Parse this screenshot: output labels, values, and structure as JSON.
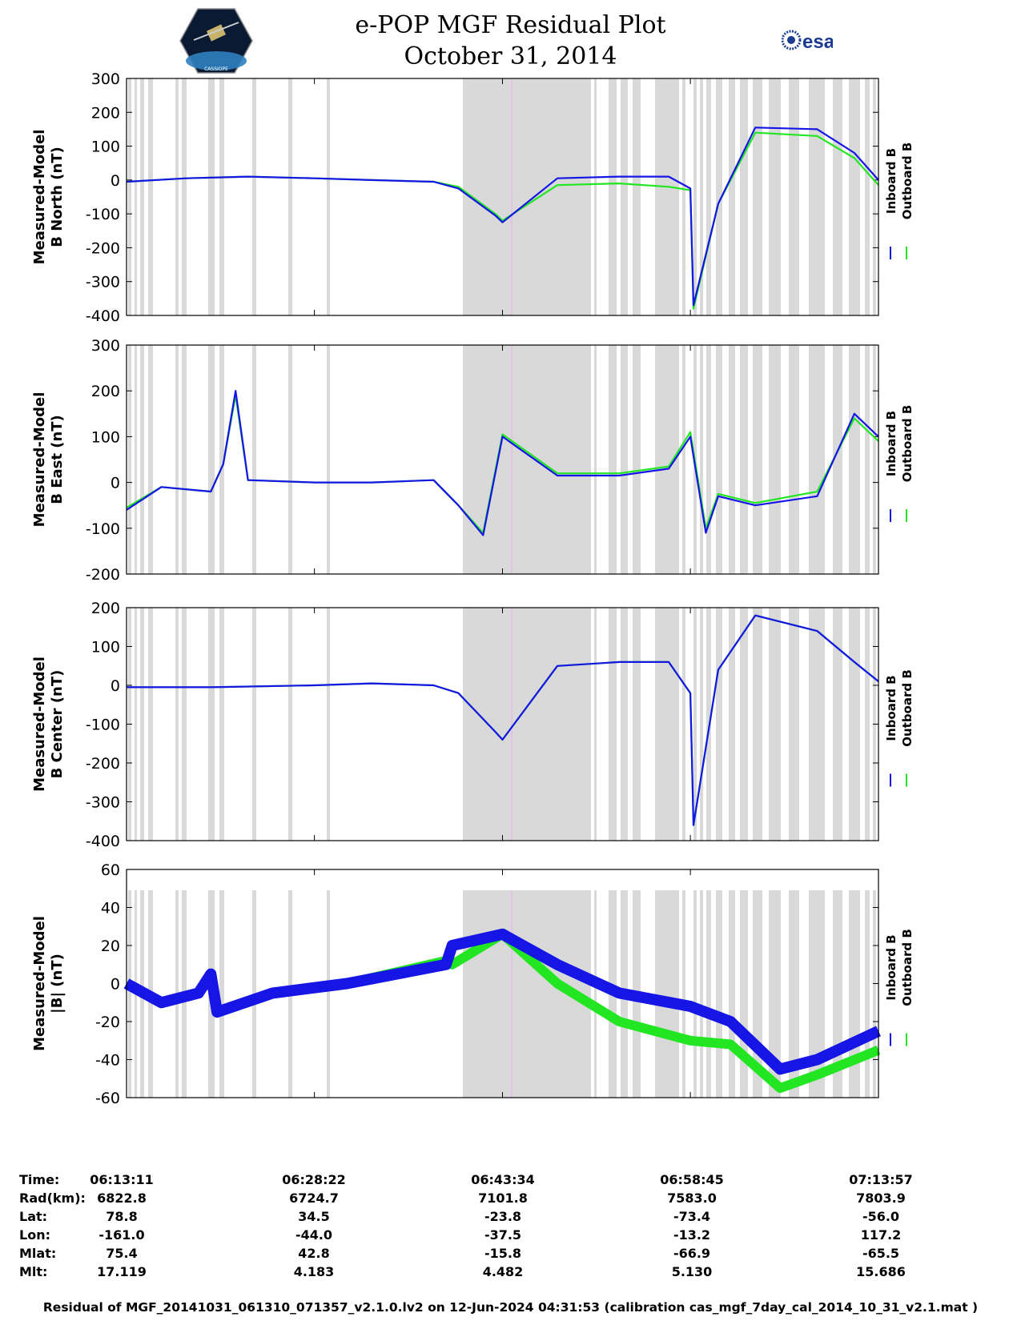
{
  "header": {
    "title": "e-POP MGF Residual Plot",
    "subtitle": "October 31, 2014",
    "left_logo_text": "CASSIOPE",
    "right_logo_text": "esa"
  },
  "legend": {
    "inboard": "Inboard B",
    "outboard": "Outboard B",
    "inboard_color": "#1515e6",
    "outboard_color": "#22e622"
  },
  "colors": {
    "shade": "#d9d9d9",
    "marker": "#e8b8e8"
  },
  "chart_data": [
    {
      "type": "line",
      "ylabel_line1": "Measured-Model",
      "ylabel_line2": "B North (nT)",
      "ylim": [
        -400,
        300
      ],
      "yticks": [
        300,
        200,
        100,
        0,
        -100,
        -200,
        -300,
        -400
      ],
      "x": [
        "06:13:11",
        "06:18",
        "06:23",
        "06:28:22",
        "06:33",
        "06:38",
        "06:40",
        "06:43",
        "06:43:34",
        "06:48",
        "06:53",
        "06:57",
        "06:58:45",
        "06:59",
        "07:01",
        "07:04",
        "07:09",
        "07:12",
        "07:13:57"
      ],
      "series": [
        {
          "name": "Inboard B",
          "values": [
            -5,
            5,
            10,
            5,
            0,
            -5,
            -25,
            -105,
            -125,
            5,
            10,
            10,
            -25,
            -370,
            -70,
            155,
            150,
            80,
            0
          ]
        },
        {
          "name": "Outboard B",
          "values": [
            -5,
            5,
            10,
            5,
            0,
            -5,
            -20,
            -100,
            -120,
            -15,
            -10,
            -20,
            -30,
            -380,
            -70,
            140,
            130,
            65,
            -15
          ]
        }
      ]
    },
    {
      "type": "line",
      "ylabel_line1": "Measured-Model",
      "ylabel_line2": "B East (nT)",
      "ylim": [
        -200,
        300
      ],
      "yticks": [
        300,
        200,
        100,
        0,
        -100,
        -200
      ],
      "x": [
        "06:13:11",
        "06:16",
        "06:20",
        "06:21",
        "06:22",
        "06:23",
        "06:28:22",
        "06:33",
        "06:38",
        "06:40",
        "06:42",
        "06:43:34",
        "06:48",
        "06:53",
        "06:57",
        "06:58:45",
        "07:00",
        "07:01",
        "07:04",
        "07:09",
        "07:12",
        "07:13:57"
      ],
      "series": [
        {
          "name": "Inboard B",
          "values": [
            -60,
            -10,
            -20,
            40,
            200,
            5,
            0,
            0,
            5,
            -50,
            -115,
            100,
            15,
            15,
            30,
            100,
            -110,
            -30,
            -50,
            -30,
            150,
            100
          ]
        },
        {
          "name": "Outboard B",
          "values": [
            -55,
            -10,
            -20,
            40,
            190,
            5,
            0,
            0,
            5,
            -50,
            -110,
            105,
            20,
            20,
            35,
            110,
            -100,
            -25,
            -45,
            -20,
            140,
            90
          ]
        }
      ]
    },
    {
      "type": "line",
      "ylabel_line1": "Measured-Model",
      "ylabel_line2": "B Center (nT)",
      "ylim": [
        -400,
        200
      ],
      "yticks": [
        200,
        100,
        0,
        -100,
        -200,
        -300,
        -400
      ],
      "x": [
        "06:13:11",
        "06:20",
        "06:28:22",
        "06:33",
        "06:38",
        "06:40",
        "06:43",
        "06:43:34",
        "06:48",
        "06:53",
        "06:57",
        "06:58:45",
        "06:59",
        "07:01",
        "07:04",
        "07:09",
        "07:12",
        "07:13:57"
      ],
      "series": [
        {
          "name": "Inboard B",
          "values": [
            -5,
            -5,
            0,
            5,
            0,
            -20,
            -120,
            -140,
            50,
            60,
            60,
            -20,
            -360,
            40,
            180,
            140,
            60,
            10
          ]
        },
        {
          "name": "Outboard B",
          "values": [
            -5,
            -5,
            0,
            5,
            0,
            -20,
            -120,
            -140,
            50,
            60,
            60,
            -20,
            -360,
            40,
            180,
            140,
            60,
            10
          ]
        }
      ]
    },
    {
      "type": "line",
      "ylabel_line1": "Measured-Model",
      "ylabel_line2": "|B| (nT)",
      "ylim": [
        -60,
        60
      ],
      "yticks": [
        60,
        40,
        20,
        0,
        -20,
        -40,
        -60
      ],
      "x": [
        "06:13:11",
        "06:16",
        "06:19",
        "06:20",
        "06:20:30",
        "06:25",
        "06:31",
        "06:39",
        "06:39:30",
        "06:43:34",
        "06:48",
        "06:53",
        "06:58:45",
        "07:02",
        "07:06",
        "07:09",
        "07:13:57"
      ],
      "series": [
        {
          "name": "Inboard B",
          "values": [
            0,
            -10,
            -5,
            5,
            -15,
            -5,
            0,
            10,
            20,
            26,
            10,
            -5,
            -12,
            -20,
            -45,
            -40,
            -25
          ]
        },
        {
          "name": "Outboard B",
          "values": [
            0,
            -10,
            -5,
            5,
            -15,
            -5,
            0,
            12,
            10,
            26,
            0,
            -20,
            -30,
            -32,
            -55,
            -48,
            -35
          ]
        }
      ]
    }
  ],
  "ephemeris": {
    "rows": [
      {
        "label": "Time:",
        "values": [
          "06:13:11",
          "06:28:22",
          "06:43:34",
          "06:58:45",
          "07:13:57"
        ]
      },
      {
        "label": "Rad(km):",
        "values": [
          "6822.8",
          "6724.7",
          "7101.8",
          "7583.0",
          "7803.9"
        ]
      },
      {
        "label": "Lat:",
        "values": [
          "78.8",
          "34.5",
          "-23.8",
          "-73.4",
          "-56.0"
        ]
      },
      {
        "label": "Lon:",
        "values": [
          "-161.0",
          "-44.0",
          "-37.5",
          "-13.2",
          "117.2"
        ]
      },
      {
        "label": "Mlat:",
        "values": [
          "75.4",
          "42.8",
          "-15.8",
          "-66.9",
          "-65.5"
        ]
      },
      {
        "label": "Mlt:",
        "values": [
          "17.119",
          "4.183",
          "4.482",
          "5.130",
          "15.686"
        ]
      }
    ]
  },
  "footer": "Residual of MGF_20141031_061310_071357_v2.1.0.lv2 on 12-Jun-2024 04:31:53 (calibration cas_mgf_7day_cal_2014_10_31_v2.1.mat )"
}
